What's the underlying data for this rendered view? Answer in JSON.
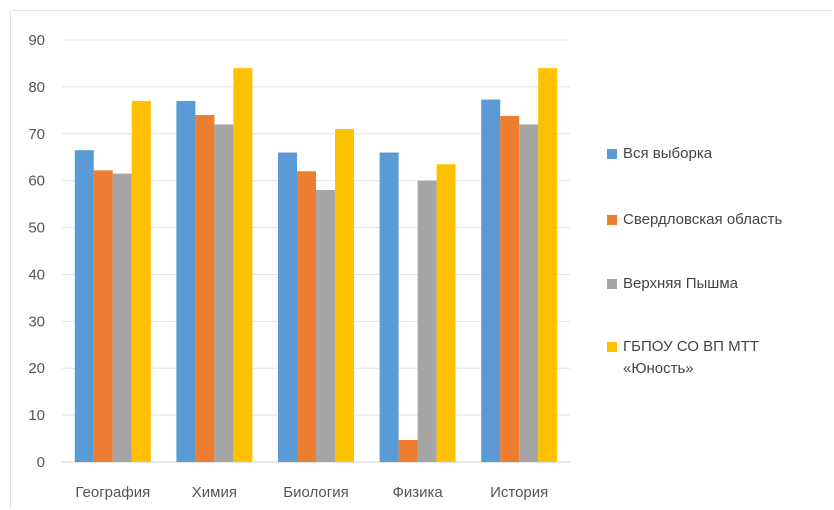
{
  "chart_data": {
    "type": "bar",
    "categories": [
      "География",
      "Химия",
      "Биология",
      "Физика",
      "История"
    ],
    "series": [
      {
        "name": "Вся выборка",
        "color": "#5B9BD5",
        "values": [
          66.5,
          77,
          66,
          66,
          77.3
        ]
      },
      {
        "name": "Свердловская область",
        "color": "#ED7D31",
        "values": [
          62.2,
          74,
          62,
          4.7,
          73.8
        ]
      },
      {
        "name": "Верхняя Пышма",
        "color": "#A5A5A5",
        "values": [
          61.5,
          72,
          58,
          60,
          72
        ]
      },
      {
        "name": "ГБПОУ СО ВП МТТ «Юность»",
        "color": "#FFC000",
        "values": [
          77,
          84,
          71,
          63.5,
          84
        ]
      }
    ],
    "yticks": [
      "0",
      "10",
      "20",
      "30",
      "40",
      "50",
      "60",
      "70",
      "80",
      "90"
    ],
    "ylim": [
      0,
      90
    ],
    "grid": true,
    "legend_position": "right"
  }
}
